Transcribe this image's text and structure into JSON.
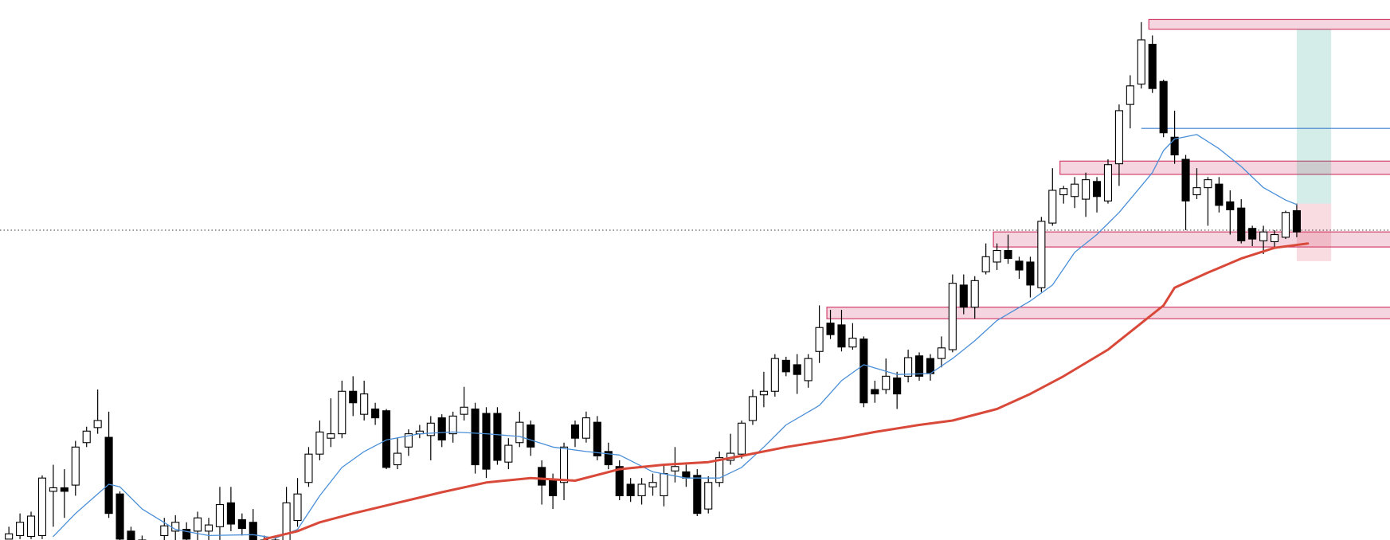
{
  "chart_data": {
    "type": "candlestick",
    "xlim": [
      -0.8,
      124.4
    ],
    "ylim": [
      0,
      610
    ],
    "up_color": "#ffffff",
    "down_color": "#000000",
    "open": [
      1,
      5,
      4,
      5,
      55,
      59,
      62,
      110,
      127,
      116,
      52,
      10,
      0,
      -10,
      5,
      10,
      12,
      10,
      10,
      15,
      42,
      23,
      20,
      0,
      -10,
      -5,
      22,
      65,
      97,
      115,
      120,
      168,
      142,
      148,
      146,
      85,
      105,
      120,
      118,
      138,
      120,
      142,
      148,
      143,
      143,
      88,
      110,
      130,
      82,
      67,
      65,
      130,
      115,
      133,
      100,
      83,
      63,
      50,
      60,
      50,
      78,
      77,
      73,
      35,
      65,
      90,
      97,
      135,
      164,
      168,
      203,
      198,
      180,
      213,
      245,
      243,
      218,
      227,
      170,
      170,
      183,
      185,
      208,
      205,
      205,
      215,
      288,
      263,
      303,
      314,
      327,
      315,
      314,
      285,
      358,
      390,
      388,
      385,
      405,
      383,
      425,
      492,
      515,
      560,
      518,
      455,
      430,
      390,
      398,
      402,
      382,
      375,
      352,
      338,
      337,
      342,
      372
    ],
    "high": [
      15,
      30,
      32,
      73,
      85,
      80,
      112,
      128,
      170,
      145,
      55,
      15,
      5,
      -5,
      25,
      28,
      20,
      32,
      25,
      60,
      60,
      30,
      35,
      5,
      5,
      60,
      70,
      105,
      135,
      160,
      180,
      185,
      180,
      155,
      148,
      115,
      125,
      130,
      140,
      142,
      145,
      173,
      155,
      150,
      150,
      115,
      145,
      135,
      90,
      75,
      110,
      135,
      145,
      140,
      110,
      90,
      70,
      70,
      75,
      85,
      105,
      85,
      80,
      72,
      100,
      120,
      135,
      170,
      190,
      210,
      207,
      210,
      210,
      265,
      260,
      260,
      245,
      230,
      180,
      205,
      190,
      215,
      212,
      210,
      230,
      300,
      300,
      298,
      335,
      335,
      345,
      320,
      320,
      365,
      420,
      400,
      410,
      415,
      410,
      430,
      492,
      525,
      585,
      570,
      520,
      485,
      435,
      420,
      410,
      410,
      395,
      385,
      355,
      355,
      350,
      372,
      380
    ],
    "low": [
      1,
      1,
      1,
      1,
      15,
      25,
      50,
      105,
      120,
      25,
      0,
      -15,
      -25,
      -30,
      -5,
      -5,
      -10,
      -5,
      0,
      -5,
      10,
      5,
      -15,
      -20,
      -20,
      -10,
      15,
      60,
      90,
      105,
      115,
      140,
      135,
      130,
      80,
      80,
      95,
      115,
      90,
      105,
      110,
      135,
      75,
      70,
      85,
      80,
      105,
      95,
      40,
      35,
      45,
      105,
      110,
      90,
      80,
      45,
      43,
      40,
      50,
      38,
      65,
      60,
      27,
      30,
      60,
      85,
      92,
      130,
      150,
      162,
      185,
      165,
      172,
      200,
      227,
      213,
      215,
      150,
      155,
      165,
      148,
      178,
      180,
      180,
      195,
      212,
      255,
      250,
      300,
      305,
      312,
      295,
      274,
      280,
      355,
      380,
      375,
      365,
      370,
      380,
      400,
      465,
      510,
      505,
      455,
      425,
      350,
      385,
      355,
      370,
      345,
      335,
      332,
      323,
      330,
      340,
      342
    ],
    "close": [
      7,
      20,
      27,
      70,
      59,
      55,
      105,
      123,
      135,
      30,
      1,
      -5,
      -15,
      -20,
      16,
      20,
      1,
      25,
      17,
      40,
      18,
      13,
      -5,
      -10,
      0,
      42,
      52,
      97,
      122,
      120,
      168,
      155,
      165,
      138,
      82,
      98,
      120,
      123,
      132,
      113,
      140,
      150,
      85,
      80,
      90,
      107,
      133,
      105,
      62,
      50,
      105,
      115,
      138,
      95,
      85,
      50,
      50,
      63,
      65,
      75,
      83,
      70,
      30,
      65,
      93,
      98,
      132,
      162,
      168,
      205,
      190,
      187,
      205,
      240,
      232,
      218,
      228,
      155,
      165,
      185,
      165,
      206,
      185,
      188,
      217,
      290,
      263,
      293,
      320,
      327,
      318,
      305,
      288,
      360,
      395,
      397,
      402,
      407,
      388,
      424,
      485,
      513,
      565,
      510,
      460,
      435,
      383,
      398,
      407,
      378,
      373,
      338,
      340,
      348,
      345,
      370,
      348
    ],
    "series": [
      {
        "color": "#4a8fd8",
        "width": 1.3,
        "x": [
          4,
          6,
          9,
          10,
          12,
          15,
          18,
          22,
          24,
          26,
          28,
          30,
          32,
          34,
          37,
          40,
          43,
          46,
          49,
          52,
          55,
          58,
          61,
          64,
          66,
          68,
          70,
          73,
          75,
          77,
          80,
          83,
          85,
          87,
          89,
          92,
          94,
          96,
          98,
          100,
          102,
          103,
          104,
          105,
          107,
          109,
          111,
          113,
          115,
          116
        ],
        "values": [
          4,
          30,
          63,
          60,
          35,
          12,
          5,
          6,
          2,
          12,
          50,
          82,
          100,
          113,
          120,
          122,
          120,
          117,
          105,
          100,
          96,
          77,
          70,
          70,
          82,
          105,
          130,
          152,
          180,
          198,
          187,
          188,
          205,
          225,
          248,
          270,
          288,
          325,
          345,
          370,
          400,
          415,
          440,
          453,
          458,
          442,
          422,
          398,
          384,
          379
        ]
      },
      {
        "color": "#d9493a",
        "width": 3,
        "x": [
          23,
          26,
          28,
          31,
          35,
          39,
          43,
          47,
          51,
          55,
          59,
          63,
          66,
          70,
          75,
          78,
          82,
          85,
          89,
          92,
          95,
          99,
          102,
          104,
          105,
          108,
          111,
          114,
          117
        ],
        "values": [
          1,
          10,
          20,
          30,
          42,
          54,
          65,
          70,
          67,
          80,
          85,
          88,
          95,
          105,
          115,
          122,
          130,
          135,
          148,
          165,
          185,
          215,
          245,
          265,
          285,
          302,
          318,
          330,
          335
        ]
      }
    ],
    "zones": [
      {
        "x": 103,
        "top": 588,
        "bottom": 577
      },
      {
        "x": 95,
        "top": 428,
        "bottom": 413
      },
      {
        "x": 89,
        "top": 348,
        "bottom": 331
      },
      {
        "x": 74,
        "top": 263,
        "bottom": 250
      }
    ],
    "zone_color": "#d2406c",
    "level": {
      "x": 102,
      "value": 465,
      "color": "#3f7fd0"
    },
    "current_price": 350,
    "position": {
      "x": [
        116,
        119.1
      ],
      "entry": 380,
      "target": 577,
      "stop": 315
    }
  }
}
